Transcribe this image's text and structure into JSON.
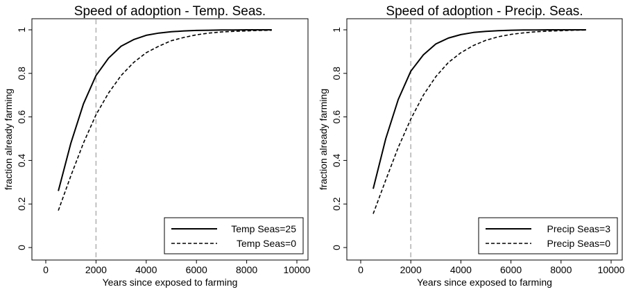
{
  "chart_data": [
    {
      "type": "line",
      "title": "Speed of adoption - Temp. Seas.",
      "xlabel": "Years since exposed to farming",
      "ylabel": "fraction already farming",
      "xlim": [
        0,
        10000
      ],
      "ylim": [
        0,
        1
      ],
      "xticks": [
        0,
        2000,
        4000,
        6000,
        8000,
        10000
      ],
      "yticks": [
        0,
        0.2,
        0.4,
        0.6,
        0.8,
        1
      ],
      "vline": {
        "x": 2000,
        "style": "dashed",
        "color": "#b0b0b0"
      },
      "grid": false,
      "legend_position": "bottom-right",
      "series": [
        {
          "name": "Temp Seas=25",
          "style": "solid",
          "x": [
            500,
            1000,
            1500,
            2000,
            2500,
            3000,
            3500,
            4000,
            4500,
            5000,
            5500,
            6000,
            6500,
            7000,
            7500,
            8000,
            8500,
            9000
          ],
          "y": [
            0.26,
            0.48,
            0.66,
            0.79,
            0.87,
            0.925,
            0.955,
            0.975,
            0.985,
            0.991,
            0.995,
            0.997,
            0.998,
            0.999,
            0.999,
            1.0,
            1.0,
            1.0
          ]
        },
        {
          "name": "Temp Seas=0",
          "style": "dashed",
          "x": [
            500,
            1000,
            1500,
            2000,
            2500,
            3000,
            3500,
            4000,
            4500,
            5000,
            5500,
            6000,
            6500,
            7000,
            7500,
            8000,
            8500,
            9000
          ],
          "y": [
            0.17,
            0.33,
            0.48,
            0.61,
            0.71,
            0.79,
            0.85,
            0.895,
            0.925,
            0.95,
            0.965,
            0.977,
            0.985,
            0.99,
            0.993,
            0.995,
            0.997,
            0.998
          ]
        }
      ]
    },
    {
      "type": "line",
      "title": "Speed of adoption - Precip. Seas.",
      "xlabel": "Years since exposed to farming",
      "ylabel": "fraction already farming",
      "xlim": [
        0,
        10000
      ],
      "ylim": [
        0,
        1
      ],
      "xticks": [
        0,
        2000,
        4000,
        6000,
        8000,
        10000
      ],
      "yticks": [
        0,
        0.2,
        0.4,
        0.6,
        0.8,
        1
      ],
      "vline": {
        "x": 2000,
        "style": "dashed",
        "color": "#b0b0b0"
      },
      "grid": false,
      "legend_position": "bottom-right",
      "series": [
        {
          "name": "Precip Seas=3",
          "style": "solid",
          "x": [
            500,
            1000,
            1500,
            2000,
            2500,
            3000,
            3500,
            4000,
            4500,
            5000,
            5500,
            6000,
            6500,
            7000,
            7500,
            8000,
            8500,
            9000
          ],
          "y": [
            0.27,
            0.5,
            0.68,
            0.81,
            0.885,
            0.935,
            0.962,
            0.978,
            0.988,
            0.993,
            0.996,
            0.998,
            0.999,
            0.999,
            1.0,
            1.0,
            1.0,
            1.0
          ]
        },
        {
          "name": "Precip Seas=0",
          "style": "dashed",
          "x": [
            500,
            1000,
            1500,
            2000,
            2500,
            3000,
            3500,
            4000,
            4500,
            5000,
            5500,
            6000,
            6500,
            7000,
            7500,
            8000,
            8500,
            9000
          ],
          "y": [
            0.155,
            0.31,
            0.46,
            0.59,
            0.7,
            0.785,
            0.85,
            0.895,
            0.928,
            0.952,
            0.968,
            0.979,
            0.986,
            0.991,
            0.994,
            0.996,
            0.998,
            0.999
          ]
        }
      ]
    }
  ]
}
